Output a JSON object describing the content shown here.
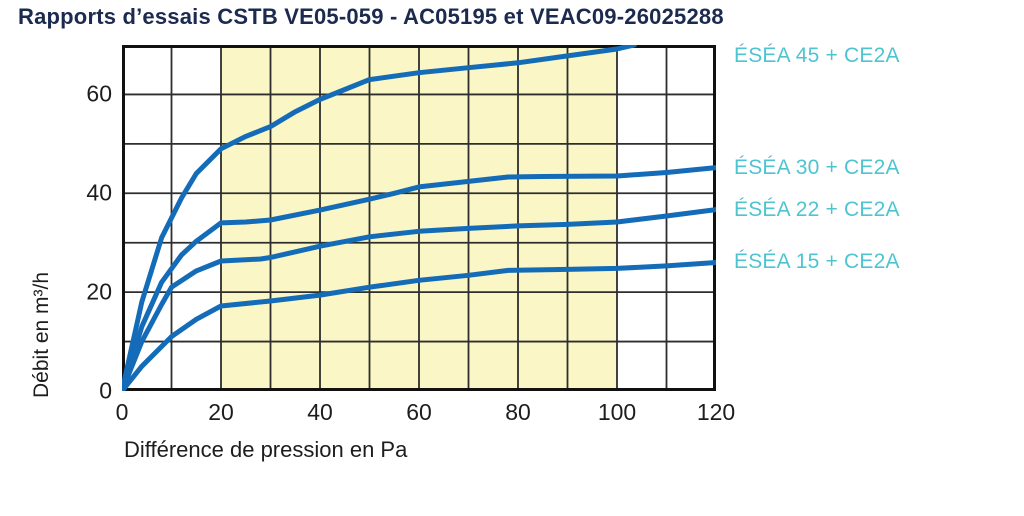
{
  "title": {
    "text": "Rapports d’essais CSTB VE05-059 - AC05195 et VEAC09-26025288",
    "color": "#1b2a4e"
  },
  "chart_data": {
    "type": "line",
    "title": "Rapports d’essais CSTB VE05-059 - AC05195 et VEAC09-26025288",
    "xlabel": "Différence de pression en Pa",
    "ylabel": "Débit en m³/h",
    "xlim": [
      0,
      120
    ],
    "ylim": [
      0,
      70
    ],
    "x_ticks": [
      0,
      20,
      40,
      60,
      80,
      100,
      120
    ],
    "y_ticks": [
      0,
      20,
      40,
      60
    ],
    "grid": true,
    "grid_step_x": 10,
    "grid_step_y": 10,
    "grid_color": "#2e2e2e",
    "border_color": "#111111",
    "highlight_band": {
      "x_from": 20,
      "x_to": 100,
      "color": "#faf6c5"
    },
    "line_color": "#146cb8",
    "series_label_color": "#4fc4d1",
    "legend_position": "right",
    "series": [
      {
        "name": "ÉSÉA 45 + CE2A",
        "points": [
          [
            0,
            0
          ],
          [
            4,
            18
          ],
          [
            8,
            31
          ],
          [
            12,
            39
          ],
          [
            15,
            44
          ],
          [
            20,
            49
          ],
          [
            25,
            51.5
          ],
          [
            30,
            53.5
          ],
          [
            35,
            56.5
          ],
          [
            40,
            59
          ],
          [
            45,
            61
          ],
          [
            50,
            63
          ],
          [
            60,
            64.4
          ],
          [
            70,
            65.4
          ],
          [
            80,
            66.4
          ],
          [
            90,
            67.8
          ],
          [
            100,
            69.2
          ],
          [
            103.5,
            70
          ]
        ]
      },
      {
        "name": "ÉSÉA 30 + CE2A",
        "points": [
          [
            0,
            0
          ],
          [
            4,
            13
          ],
          [
            8,
            22
          ],
          [
            12,
            27.5
          ],
          [
            15,
            30.3
          ],
          [
            20,
            34
          ],
          [
            25,
            34.2
          ],
          [
            30,
            34.6
          ],
          [
            40,
            36.6
          ],
          [
            50,
            38.8
          ],
          [
            55,
            40
          ],
          [
            60,
            41.3
          ],
          [
            70,
            42.4
          ],
          [
            78,
            43.3
          ],
          [
            85,
            43.4
          ],
          [
            100,
            43.5
          ],
          [
            110,
            44.2
          ],
          [
            120,
            45.2
          ]
        ]
      },
      {
        "name": "ÉSÉA 22 + CE2A",
        "points": [
          [
            0,
            0
          ],
          [
            4,
            10
          ],
          [
            8,
            17.5
          ],
          [
            10,
            21
          ],
          [
            15,
            24.3
          ],
          [
            20,
            26.3
          ],
          [
            28,
            26.7
          ],
          [
            30,
            27
          ],
          [
            40,
            29.3
          ],
          [
            50,
            31.2
          ],
          [
            60,
            32.3
          ],
          [
            70,
            32.9
          ],
          [
            80,
            33.4
          ],
          [
            90,
            33.7
          ],
          [
            100,
            34.2
          ],
          [
            110,
            35.4
          ],
          [
            120,
            36.7
          ]
        ]
      },
      {
        "name": "ÉSÉA 15 + CE2A",
        "points": [
          [
            0,
            0
          ],
          [
            4,
            5
          ],
          [
            8,
            9
          ],
          [
            10,
            11
          ],
          [
            15,
            14.5
          ],
          [
            20,
            17.2
          ],
          [
            30,
            18.2
          ],
          [
            40,
            19.4
          ],
          [
            50,
            21
          ],
          [
            60,
            22.4
          ],
          [
            70,
            23.4
          ],
          [
            78,
            24.4
          ],
          [
            90,
            24.6
          ],
          [
            100,
            24.8
          ],
          [
            110,
            25.3
          ],
          [
            120,
            26
          ]
        ]
      }
    ]
  }
}
